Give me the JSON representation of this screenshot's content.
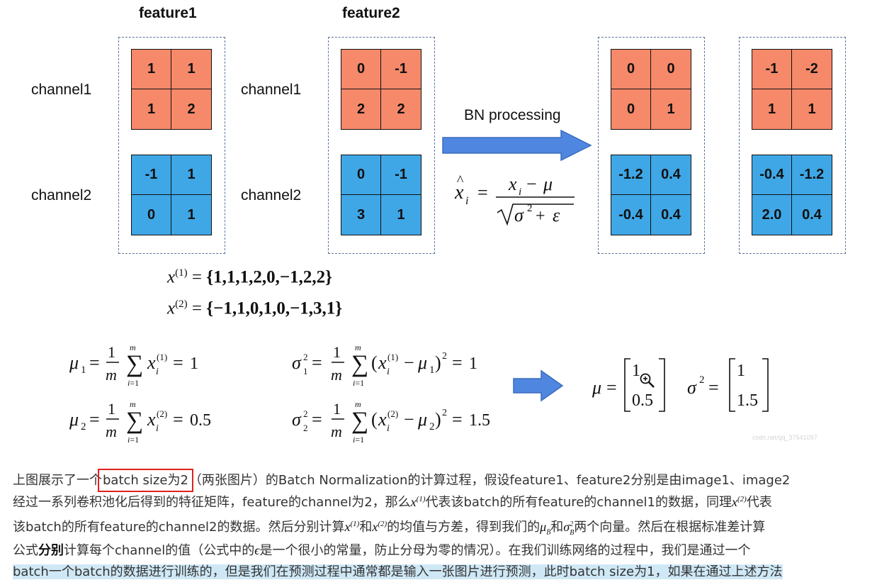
{
  "feature_titles": [
    "feature1",
    "feature2"
  ],
  "channel_labels": [
    "channel1",
    "channel2"
  ],
  "grids": {
    "f1c1": [
      "1",
      "1",
      "1",
      "2"
    ],
    "f1c2": [
      "-1",
      "1",
      "0",
      "1"
    ],
    "f2c1": [
      "0",
      "-1",
      "2",
      "2"
    ],
    "f2c2": [
      "0",
      "-1",
      "3",
      "1"
    ],
    "o1c1": [
      "0",
      "0",
      "0",
      "1"
    ],
    "o1c2": [
      "-1.2",
      "0.4",
      "-0.4",
      "0.4"
    ],
    "o2c1": [
      "-1",
      "-2",
      "1",
      "1"
    ],
    "o2c2": [
      "-0.4",
      "-1.2",
      "2.0",
      "0.4"
    ]
  },
  "arrow_label": "BN processing",
  "set_x1": "{1,1,1,2,0,−1,2,2}",
  "set_x2": "{−1,1,0,1,0,−1,3,1}",
  "mean1_value": "1",
  "mean2_value": "0.5",
  "var1_value": "1",
  "var2_value": "1.5",
  "mu_vector": [
    "1",
    "0.5"
  ],
  "sigma2_vector": [
    "1",
    "1.5"
  ],
  "watermark": "csdn.net/qq_37541097",
  "para": {
    "l1_pre": "上图展示了一个",
    "l1_box": "batch size为2",
    "l1_post": "（两张图片）的Batch Normalization的计算过程，假设feature1、feature2分别是由image1、image2",
    "l2_a": "经过一系列卷积池化后得到的特征矩阵，feature的channel为2，那么",
    "l2_b": "代表该batch的所有feature的channel1的数据，同理",
    "l2_c": "代表",
    "l3_a": "该batch的所有feature的channel2的数据。然后分别计算",
    "l3_b": "和",
    "l3_c": "的均值与方差，得到我们的",
    "l3_d": "和",
    "l3_e": "两个向量。然后在根据标准差计算",
    "l4_a": "公式",
    "l4_bold": "分别",
    "l4_b": "计算每个channel的值（公式中的",
    "l4_c": "是一个很小的常量，防止分母为零的情况）。在我们训练网络的过程中，我们是通过一个",
    "l5": "batch一个batch的数据进行训练的，但是我们在预测过程中通常都是输入一张图片进行预测，此时batch size为1，如果在通过上述方法"
  }
}
